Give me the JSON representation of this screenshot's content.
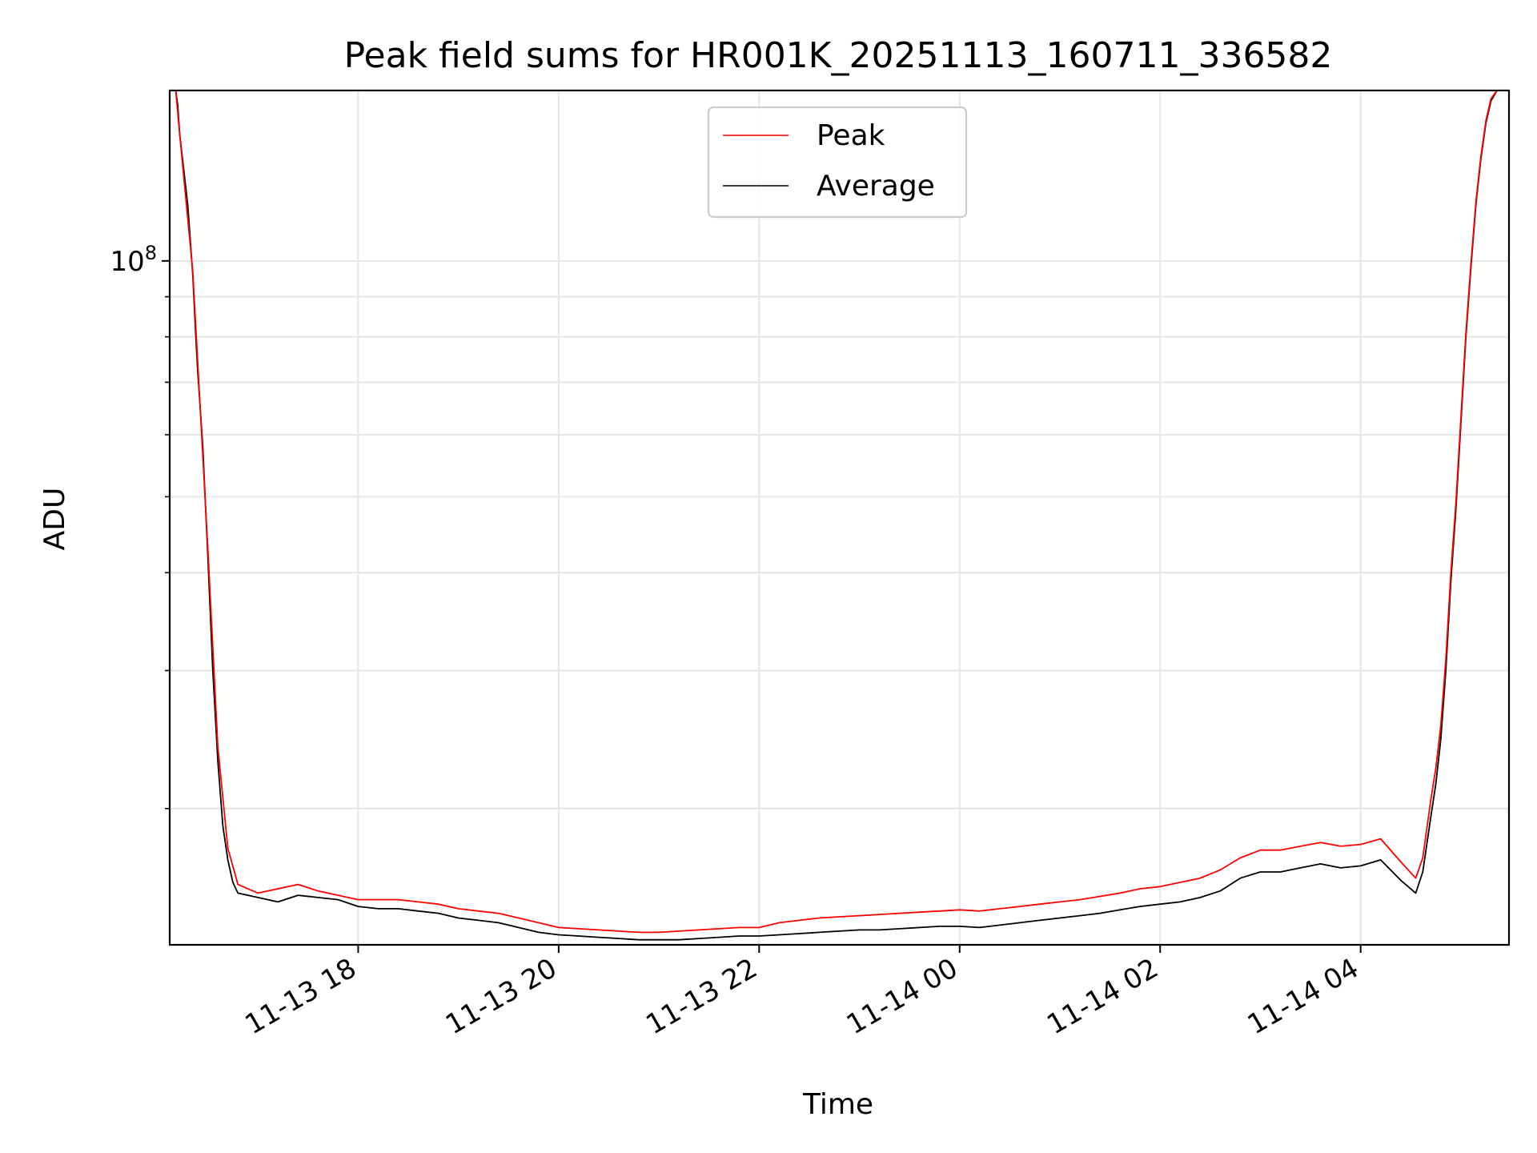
{
  "chart_data": {
    "type": "line",
    "title": "Peak field sums for HR001K_20251113_160711_336582",
    "xlabel": "Time",
    "ylabel": "ADU",
    "yscale": "log",
    "grid": true,
    "legend": {
      "placement": "top-center",
      "entries": [
        "Peak",
        "Average"
      ]
    },
    "colors": {
      "Peak": "#ff0000",
      "Average": "#000000",
      "grid": "#e6e6e6"
    },
    "x_unit": "hours since 2025-11-13 00:00",
    "xlim": [
      16.12,
      29.48
    ],
    "ylim": [
      13400000,
      165000000
    ],
    "x_ticks": [
      {
        "value": 18,
        "label": "11-13 18"
      },
      {
        "value": 20,
        "label": "11-13 20"
      },
      {
        "value": 22,
        "label": "11-13 22"
      },
      {
        "value": 24,
        "label": "11-14 00"
      },
      {
        "value": 26,
        "label": "11-14 02"
      },
      {
        "value": 28,
        "label": "11-14 04"
      }
    ],
    "y_major_ticks": [
      {
        "value": 100000000,
        "base": "10",
        "exponent": "8"
      }
    ],
    "y_minor_ticks": [
      20000000,
      30000000,
      40000000,
      50000000,
      60000000,
      70000000,
      80000000,
      90000000,
      200000000
    ],
    "series": [
      {
        "name": "Average",
        "points": [
          [
            16.18,
            165000000
          ],
          [
            16.2,
            158000000
          ],
          [
            16.22,
            145000000
          ],
          [
            16.3,
            118000000
          ],
          [
            16.35,
            96000000
          ],
          [
            16.38,
            80000000
          ],
          [
            16.4,
            72000000
          ],
          [
            16.45,
            58000000
          ],
          [
            16.5,
            42000000
          ],
          [
            16.55,
            30000000
          ],
          [
            16.6,
            23000000
          ],
          [
            16.65,
            19000000
          ],
          [
            16.7,
            17200000
          ],
          [
            16.75,
            16100000
          ],
          [
            16.8,
            15600000
          ],
          [
            17.0,
            15400000
          ],
          [
            17.2,
            15200000
          ],
          [
            17.4,
            15500000
          ],
          [
            17.6,
            15400000
          ],
          [
            17.8,
            15300000
          ],
          [
            18.0,
            15000000
          ],
          [
            18.2,
            14900000
          ],
          [
            18.4,
            14900000
          ],
          [
            18.6,
            14800000
          ],
          [
            18.8,
            14700000
          ],
          [
            19.0,
            14500000
          ],
          [
            19.2,
            14400000
          ],
          [
            19.4,
            14300000
          ],
          [
            19.6,
            14100000
          ],
          [
            19.8,
            13900000
          ],
          [
            20.0,
            13800000
          ],
          [
            20.2,
            13750000
          ],
          [
            20.4,
            13700000
          ],
          [
            20.6,
            13650000
          ],
          [
            20.8,
            13600000
          ],
          [
            21.0,
            13600000
          ],
          [
            21.2,
            13600000
          ],
          [
            21.4,
            13650000
          ],
          [
            21.6,
            13700000
          ],
          [
            21.8,
            13750000
          ],
          [
            22.0,
            13750000
          ],
          [
            22.2,
            13800000
          ],
          [
            22.4,
            13850000
          ],
          [
            22.6,
            13900000
          ],
          [
            22.8,
            13950000
          ],
          [
            23.0,
            14000000
          ],
          [
            23.2,
            14000000
          ],
          [
            23.4,
            14050000
          ],
          [
            23.6,
            14100000
          ],
          [
            23.8,
            14150000
          ],
          [
            24.0,
            14150000
          ],
          [
            24.2,
            14100000
          ],
          [
            24.4,
            14200000
          ],
          [
            24.6,
            14300000
          ],
          [
            24.8,
            14400000
          ],
          [
            25.0,
            14500000
          ],
          [
            25.2,
            14600000
          ],
          [
            25.4,
            14700000
          ],
          [
            25.6,
            14850000
          ],
          [
            25.8,
            15000000
          ],
          [
            26.0,
            15100000
          ],
          [
            26.2,
            15200000
          ],
          [
            26.4,
            15400000
          ],
          [
            26.6,
            15700000
          ],
          [
            26.8,
            16300000
          ],
          [
            27.0,
            16600000
          ],
          [
            27.2,
            16600000
          ],
          [
            27.4,
            16800000
          ],
          [
            27.6,
            17000000
          ],
          [
            27.8,
            16800000
          ],
          [
            28.0,
            16900000
          ],
          [
            28.2,
            17200000
          ],
          [
            28.4,
            16200000
          ],
          [
            28.55,
            15600000
          ],
          [
            28.62,
            16600000
          ],
          [
            28.7,
            19500000
          ],
          [
            28.75,
            21500000
          ],
          [
            28.8,
            24500000
          ],
          [
            28.85,
            30000000
          ],
          [
            28.9,
            39000000
          ],
          [
            28.95,
            48000000
          ],
          [
            29.0,
            62000000
          ],
          [
            29.05,
            80000000
          ],
          [
            29.1,
            98000000
          ],
          [
            29.15,
            118000000
          ],
          [
            29.2,
            135000000
          ],
          [
            29.25,
            150000000
          ],
          [
            29.3,
            160000000
          ],
          [
            29.36,
            165000000
          ]
        ]
      },
      {
        "name": "Peak",
        "points": [
          [
            16.18,
            165000000
          ],
          [
            16.22,
            145000000
          ],
          [
            16.35,
            97000000
          ],
          [
            16.5,
            43000000
          ],
          [
            16.6,
            24000000
          ],
          [
            16.7,
            17800000
          ],
          [
            16.8,
            16000000
          ],
          [
            17.0,
            15600000
          ],
          [
            17.2,
            15800000
          ],
          [
            17.4,
            16000000
          ],
          [
            17.6,
            15700000
          ],
          [
            17.8,
            15500000
          ],
          [
            18.0,
            15300000
          ],
          [
            18.2,
            15300000
          ],
          [
            18.4,
            15300000
          ],
          [
            18.6,
            15200000
          ],
          [
            18.8,
            15100000
          ],
          [
            19.0,
            14900000
          ],
          [
            19.2,
            14800000
          ],
          [
            19.4,
            14700000
          ],
          [
            19.6,
            14500000
          ],
          [
            19.8,
            14300000
          ],
          [
            20.0,
            14100000
          ],
          [
            20.2,
            14050000
          ],
          [
            20.4,
            14000000
          ],
          [
            20.6,
            13950000
          ],
          [
            20.8,
            13900000
          ],
          [
            21.0,
            13900000
          ],
          [
            21.2,
            13950000
          ],
          [
            21.4,
            14000000
          ],
          [
            21.6,
            14050000
          ],
          [
            21.8,
            14100000
          ],
          [
            22.0,
            14100000
          ],
          [
            22.2,
            14300000
          ],
          [
            22.4,
            14400000
          ],
          [
            22.6,
            14500000
          ],
          [
            22.8,
            14550000
          ],
          [
            23.0,
            14600000
          ],
          [
            23.2,
            14650000
          ],
          [
            23.4,
            14700000
          ],
          [
            23.6,
            14750000
          ],
          [
            23.8,
            14800000
          ],
          [
            24.0,
            14850000
          ],
          [
            24.2,
            14800000
          ],
          [
            24.4,
            14900000
          ],
          [
            24.6,
            15000000
          ],
          [
            24.8,
            15100000
          ],
          [
            25.0,
            15200000
          ],
          [
            25.2,
            15300000
          ],
          [
            25.4,
            15450000
          ],
          [
            25.6,
            15600000
          ],
          [
            25.8,
            15800000
          ],
          [
            26.0,
            15900000
          ],
          [
            26.2,
            16100000
          ],
          [
            26.4,
            16300000
          ],
          [
            26.6,
            16700000
          ],
          [
            26.8,
            17300000
          ],
          [
            27.0,
            17700000
          ],
          [
            27.2,
            17700000
          ],
          [
            27.4,
            17900000
          ],
          [
            27.6,
            18100000
          ],
          [
            27.8,
            17900000
          ],
          [
            28.0,
            18000000
          ],
          [
            28.2,
            18300000
          ],
          [
            28.4,
            17100000
          ],
          [
            28.55,
            16300000
          ],
          [
            28.62,
            17300000
          ],
          [
            28.7,
            20500000
          ],
          [
            28.75,
            22500000
          ],
          [
            28.8,
            25500000
          ],
          [
            28.85,
            31000000
          ],
          [
            28.9,
            40000000
          ],
          [
            28.95,
            49000000
          ],
          [
            29.0,
            63000000
          ],
          [
            29.05,
            81000000
          ],
          [
            29.1,
            99000000
          ],
          [
            29.15,
            119000000
          ],
          [
            29.2,
            136000000
          ],
          [
            29.25,
            151000000
          ],
          [
            29.3,
            161000000
          ],
          [
            29.36,
            165000000
          ]
        ]
      }
    ]
  }
}
